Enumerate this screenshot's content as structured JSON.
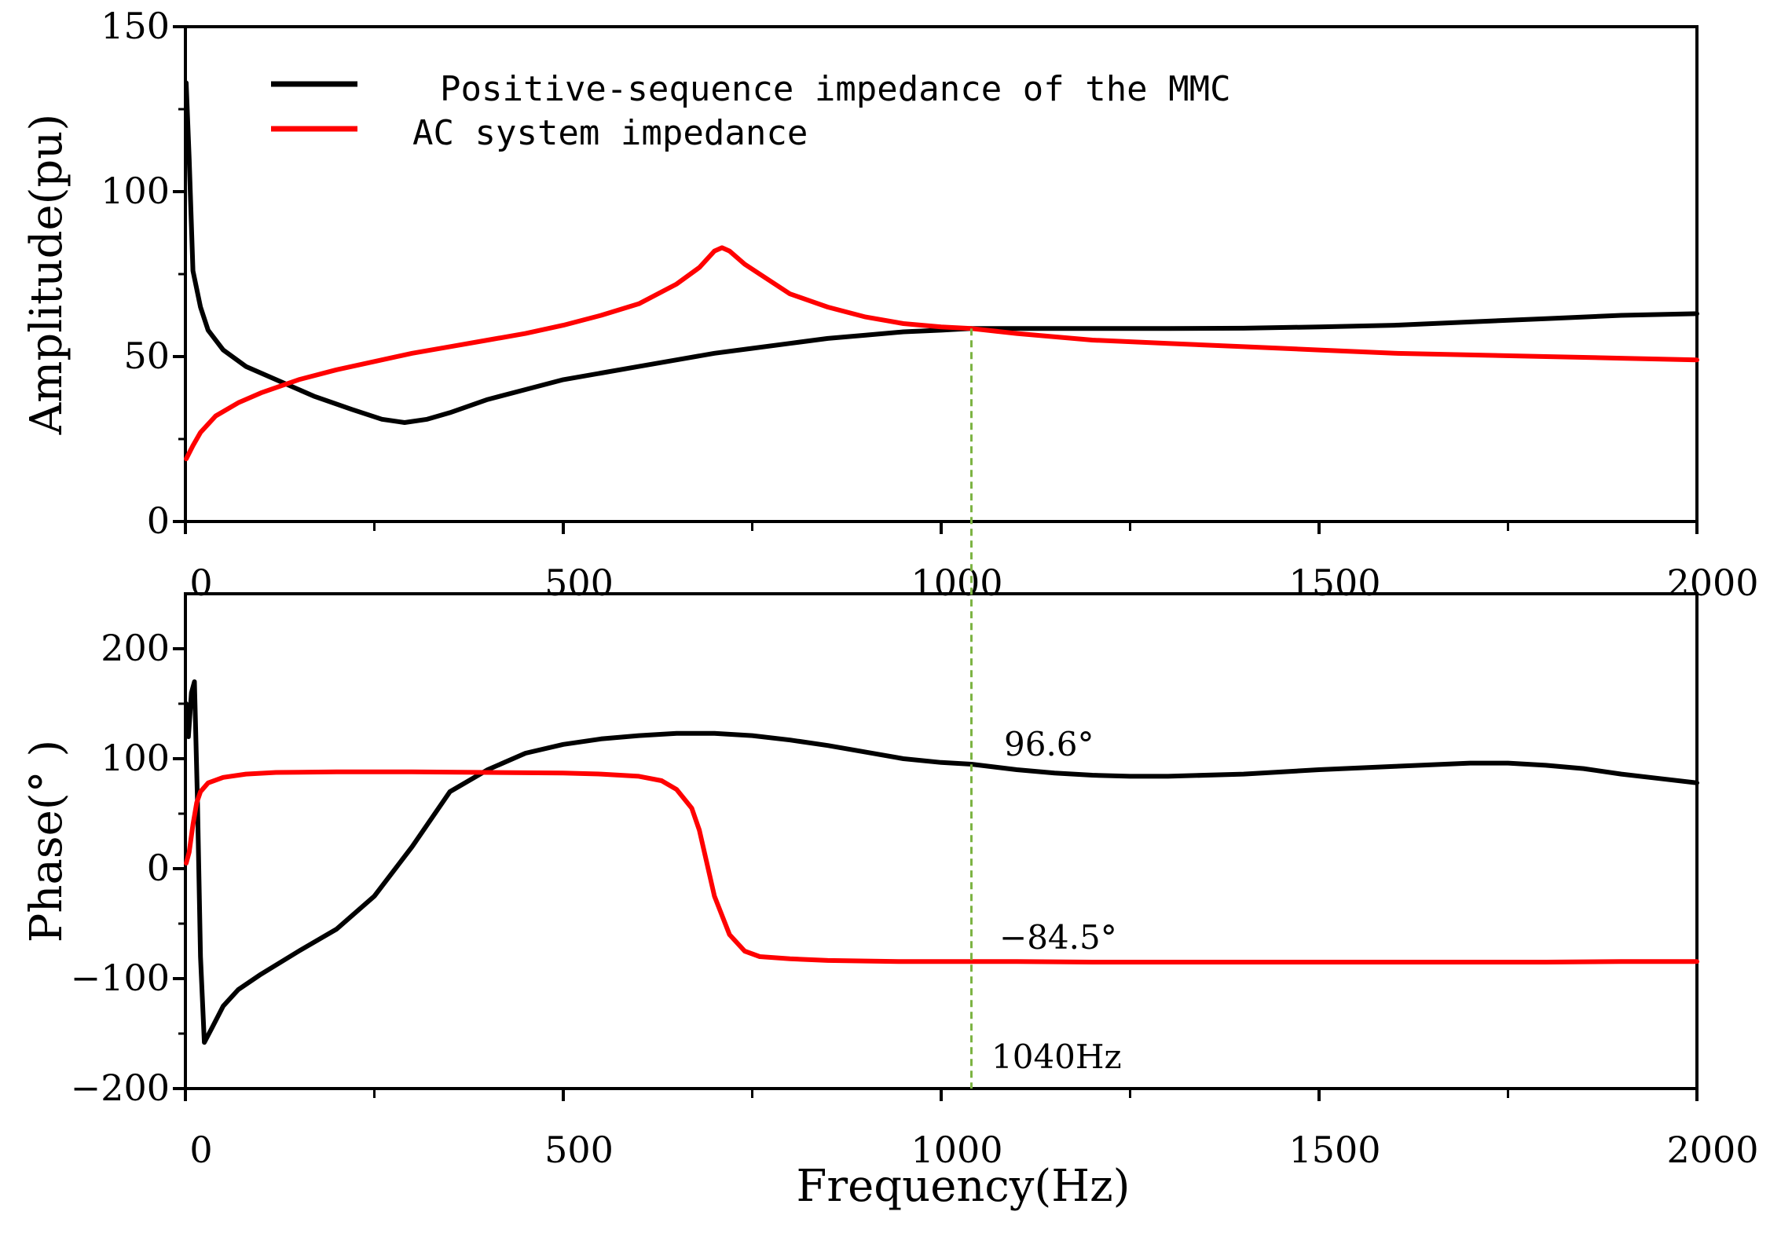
{
  "chart_data": [
    {
      "type": "line",
      "id": "amplitude",
      "ylabel": "Amplitude(pu)",
      "xlabel": "",
      "xlim": [
        0,
        2000
      ],
      "ylim": [
        0,
        150
      ],
      "x_ticks": [
        0,
        500,
        1000,
        1500,
        2000
      ],
      "x_tick_labels": [
        "0",
        "500",
        "1000",
        "1500",
        "2000"
      ],
      "y_ticks": [
        0,
        50,
        100,
        150
      ],
      "y_tick_labels": [
        "0",
        "50",
        "100",
        "150"
      ],
      "legend_position": "top-left",
      "series": [
        {
          "name": "Positive-sequence impedance of the MMC",
          "color": "#000000",
          "x": [
            1,
            5,
            10,
            20,
            30,
            50,
            80,
            120,
            170,
            220,
            260,
            290,
            320,
            350,
            400,
            450,
            500,
            550,
            600,
            650,
            700,
            750,
            800,
            850,
            900,
            950,
            1000,
            1040,
            1100,
            1200,
            1300,
            1400,
            1500,
            1600,
            1700,
            1800,
            1900,
            2000
          ],
          "y": [
            133,
            110,
            76,
            65,
            58,
            52,
            47,
            43,
            38,
            34,
            31,
            30,
            31,
            33,
            37,
            40,
            43,
            45,
            47,
            49,
            51,
            52.5,
            54,
            55.5,
            56.5,
            57.5,
            58,
            58.5,
            58.5,
            58.5,
            58.5,
            58.6,
            59,
            59.5,
            60.5,
            61.5,
            62.5,
            63
          ]
        },
        {
          "name": "AC system impedance",
          "color": "#ff0000",
          "x": [
            1,
            10,
            20,
            40,
            70,
            100,
            150,
            200,
            250,
            300,
            350,
            400,
            450,
            500,
            550,
            600,
            650,
            680,
            700,
            710,
            720,
            740,
            760,
            800,
            850,
            900,
            950,
            1000,
            1040,
            1100,
            1200,
            1300,
            1400,
            1500,
            1600,
            1700,
            1800,
            1900,
            2000
          ],
          "y": [
            19,
            23,
            27,
            32,
            36,
            39,
            43,
            46,
            48.5,
            51,
            53,
            55,
            57,
            59.5,
            62.5,
            66,
            72,
            77,
            82,
            83,
            82,
            78,
            75,
            69,
            65,
            62,
            60,
            59,
            58.5,
            57,
            55,
            54,
            53,
            52,
            51,
            50.5,
            50,
            49.5,
            49
          ]
        }
      ]
    },
    {
      "type": "line",
      "id": "phase",
      "ylabel": "Phase(° )",
      "xlabel": "Frequency(Hz)",
      "xlim": [
        0,
        2000
      ],
      "ylim": [
        -200,
        250
      ],
      "x_ticks": [
        0,
        500,
        1000,
        1500,
        2000
      ],
      "x_tick_labels": [
        "0",
        "500",
        "1000",
        "1500",
        "2000"
      ],
      "y_ticks": [
        -200,
        -100,
        0,
        100,
        200
      ],
      "y_tick_labels": [
        "−200",
        "−100",
        "0",
        "100",
        "200"
      ],
      "series": [
        {
          "name": "Positive-sequence impedance of the MMC",
          "color": "#000000",
          "x": [
            1,
            4,
            8,
            12,
            16,
            20,
            25,
            35,
            50,
            70,
            100,
            150,
            200,
            250,
            300,
            350,
            400,
            450,
            500,
            550,
            600,
            650,
            700,
            750,
            800,
            850,
            900,
            950,
            1000,
            1040,
            1100,
            1150,
            1200,
            1250,
            1300,
            1400,
            1500,
            1600,
            1700,
            1750,
            1800,
            1850,
            1900,
            1950,
            2000
          ],
          "y": [
            150,
            120,
            160,
            170,
            60,
            -80,
            -158,
            -145,
            -125,
            -110,
            -96,
            -75,
            -55,
            -25,
            20,
            70,
            90,
            105,
            113,
            118,
            121,
            123,
            123,
            121,
            117,
            112,
            106,
            100,
            96.6,
            95,
            90,
            87,
            85,
            84,
            84,
            86,
            90,
            93,
            96,
            96,
            94,
            91,
            86,
            82,
            78
          ]
        },
        {
          "name": "AC system impedance",
          "color": "#ff0000",
          "x": [
            1,
            5,
            10,
            15,
            20,
            30,
            50,
            80,
            120,
            200,
            300,
            400,
            500,
            550,
            600,
            630,
            650,
            670,
            680,
            700,
            720,
            740,
            760,
            800,
            850,
            900,
            950,
            1000,
            1040,
            1100,
            1200,
            1300,
            1400,
            1500,
            1600,
            1700,
            1800,
            1900,
            2000
          ],
          "y": [
            5,
            15,
            40,
            60,
            70,
            78,
            83,
            86,
            87.5,
            88,
            88,
            87.5,
            87,
            86,
            84,
            80,
            72,
            55,
            35,
            -25,
            -60,
            -75,
            -80,
            -82,
            -83.5,
            -84,
            -84.5,
            -84.5,
            -84.5,
            -84.5,
            -85,
            -85,
            -85,
            -85,
            -85,
            -85,
            -85,
            -84.5,
            -84.5
          ]
        }
      ],
      "annotations": {
        "mmc_phase_label": "96.6°",
        "ac_phase_label": "−84.5°",
        "freq_label": "1040Hz",
        "marker_frequency": 1040
      }
    }
  ]
}
